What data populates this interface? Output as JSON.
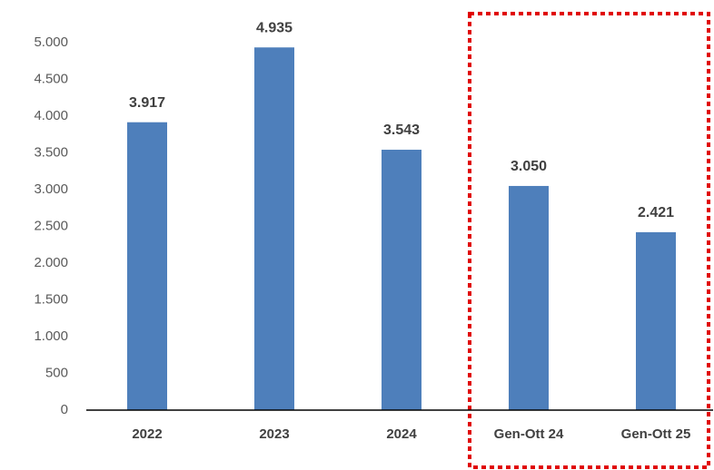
{
  "chart_data": {
    "type": "bar",
    "categories": [
      "2022",
      "2023",
      "2024",
      "Gen-Ott 24",
      "Gen-Ott 25"
    ],
    "values": [
      3917,
      4935,
      3543,
      3050,
      2421
    ],
    "value_labels": [
      "3.917",
      "4.935",
      "3.543",
      "3.050",
      "2.421"
    ],
    "color": "#4e7fbb",
    "ylim": [
      0,
      5000
    ],
    "yticks": [
      0,
      500,
      {
        "value": 1000,
        "label": "1.000"
      },
      {
        "value": 1500,
        "label": "1.500"
      },
      {
        "value": 2000,
        "label": "2.000"
      },
      {
        "value": 2500,
        "label": "2.500"
      },
      {
        "value": 3000,
        "label": "3.000"
      },
      {
        "value": 3500,
        "label": "3.500"
      },
      {
        "value": 4000,
        "label": "4.000"
      },
      {
        "value": 4500,
        "label": "4.500"
      },
      {
        "value": 5000,
        "label": "5.000"
      }
    ],
    "grid": false
  }
}
